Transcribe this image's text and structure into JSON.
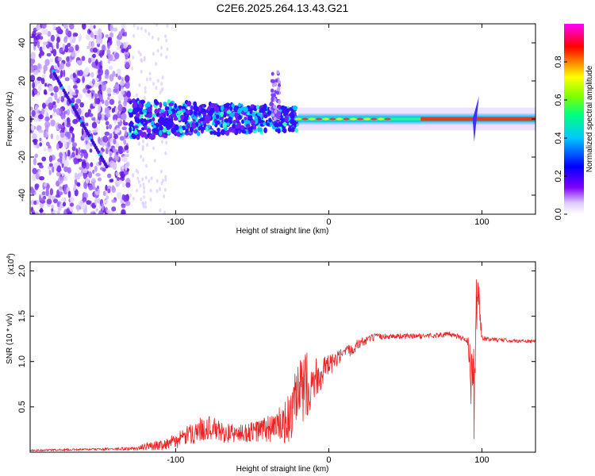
{
  "page": {
    "title": "C2E6.2025.264.13.43.G21"
  },
  "chart_data": [
    {
      "type": "heatmap",
      "title": "C2E6.2025.264.13.43.G21",
      "xlabel": "Height of straight line (km)",
      "ylabel": "Frequency (Hz)",
      "xlim": [
        -195,
        135
      ],
      "ylim": [
        -50,
        50
      ],
      "xticks": [
        -100,
        0,
        100
      ],
      "xtick_labels": [
        "-100",
        "0",
        "100"
      ],
      "yticks": [
        -40,
        -20,
        0,
        20,
        40
      ],
      "ytick_labels": [
        "-40",
        "-20",
        "0",
        "20",
        "40"
      ],
      "colorbar": {
        "label": "Normalized spectral amplitude",
        "range": [
          0,
          1
        ],
        "ticks": [
          0.0,
          0.2,
          0.4,
          0.6,
          0.8
        ],
        "tick_labels": [
          "0.0",
          "0.2",
          "0.4",
          "0.6",
          "0.8"
        ],
        "colormap": [
          "#ffffff",
          "#8000ff",
          "#0000ff",
          "#00c0ff",
          "#00ff80",
          "#80ff00",
          "#ffff00",
          "#ff8000",
          "#ff0000",
          "#ff00ff"
        ]
      },
      "features": {
        "carrier_frequency_hz": 0,
        "noisy_region_x": [
          -195,
          -130
        ],
        "chirp_start": {
          "x": -180,
          "freq": 25
        },
        "chirp_end": {
          "x": -145,
          "freq": -25
        },
        "broadband_region_x": [
          -130,
          -20
        ],
        "feature_at_x": [
          -35,
          25
        ],
        "strong_carrier_x": [
          -20,
          135
        ],
        "spike_x": 95
      }
    },
    {
      "type": "line",
      "xlabel": "Height of straight line (km)",
      "ylabel": "SNR (10 * v/v)",
      "scale_label": "(x10",
      "scale_exponent": "4",
      "xlim": [
        -195,
        135
      ],
      "ylim": [
        0,
        2.1
      ],
      "xticks": [
        -100,
        0,
        100
      ],
      "xtick_labels": [
        "-100",
        "0",
        "100"
      ],
      "yticks": [
        0.5,
        1.0,
        1.5,
        2.0
      ],
      "ytick_labels": [
        "0.5",
        "1.0",
        "1.5",
        "2.0"
      ],
      "series": [
        {
          "name": "SNR",
          "color": "#ee2222",
          "x": [
            -195,
            -160,
            -125,
            -120,
            -110,
            -100,
            -90,
            -80,
            -70,
            -60,
            -50,
            -40,
            -30,
            -25,
            -20,
            -15,
            -10,
            -5,
            0,
            10,
            20,
            30,
            40,
            60,
            80,
            90,
            95,
            97,
            100,
            110,
            120,
            135
          ],
          "y": [
            0.02,
            0.03,
            0.04,
            0.06,
            0.08,
            0.12,
            0.2,
            0.28,
            0.22,
            0.2,
            0.22,
            0.26,
            0.3,
            0.38,
            0.6,
            0.75,
            0.8,
            0.88,
            0.95,
            1.08,
            1.2,
            1.27,
            1.28,
            1.28,
            1.3,
            1.25,
            0.6,
            1.9,
            1.25,
            1.24,
            1.23,
            1.22
          ],
          "noise_amplitude": [
            0.01,
            0.01,
            0.02,
            0.04,
            0.06,
            0.08,
            0.12,
            0.14,
            0.12,
            0.1,
            0.12,
            0.16,
            0.22,
            0.3,
            0.4,
            0.38,
            0.3,
            0.2,
            0.12,
            0.08,
            0.06,
            0.04,
            0.03,
            0.03,
            0.03,
            0.04,
            0.6,
            0.3,
            0.03,
            0.02,
            0.02,
            0.02
          ]
        }
      ]
    }
  ]
}
